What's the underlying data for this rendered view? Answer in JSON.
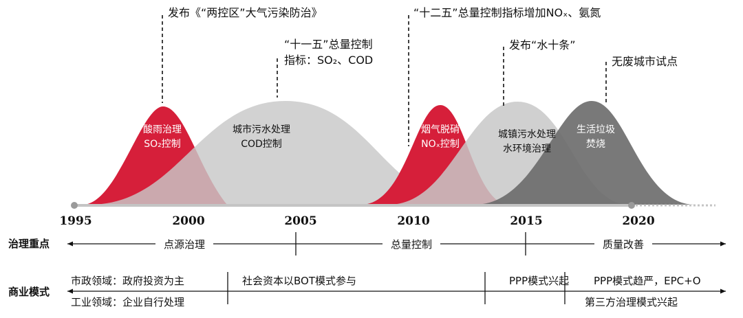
{
  "years": [
    "1995",
    "2000",
    "2005",
    "2010",
    "2015",
    "2020"
  ],
  "colors": {
    "red": "#d61f3a",
    "light_gray": "#c8c8c8",
    "dark_gray": "#6a6a6a",
    "axis": "#c4c4c4",
    "text": "#111111"
  },
  "curves": [
    {
      "id": "acid-rain",
      "label_lines": [
        "酸雨治理",
        "SO₂控制"
      ],
      "color": "red",
      "label_color": "#ffffff"
    },
    {
      "id": "sewage-cod",
      "label_lines": [
        "城市污水处理",
        "COD控制"
      ],
      "color": "light_gray",
      "label_color": "#111111"
    },
    {
      "id": "denitration",
      "label_lines": [
        "烟气脱硝",
        "NOₓ控制"
      ],
      "color": "red",
      "label_color": "#ffffff"
    },
    {
      "id": "water-env",
      "label_lines": [
        "城镇污水处理",
        "水环境治理"
      ],
      "color": "light_gray",
      "label_color": "#111111"
    },
    {
      "id": "incineration",
      "label_lines": [
        "生活垃圾",
        "焚烧"
      ],
      "color": "dark_gray",
      "label_color": "#ffffff"
    }
  ],
  "annotations": [
    {
      "id": "anti-pollution-law",
      "lines": [
        "发布《“两控区”大气污染防治》"
      ]
    },
    {
      "id": "eleventh-five",
      "lines": [
        "“十一五”总量控制",
        "指标：SO₂、COD"
      ]
    },
    {
      "id": "twelfth-five",
      "lines": [
        "“十二五”总量控制指标增加NOₓ、氨氮"
      ]
    },
    {
      "id": "water-ten",
      "lines": [
        "发布“水十条”"
      ]
    },
    {
      "id": "zero-waste-city",
      "lines": [
        "无废城市试点"
      ]
    }
  ],
  "governance": {
    "title": "治理重点",
    "phases": [
      "点源治理",
      "总量控制",
      "质量改善"
    ]
  },
  "business": {
    "title": "商业模式",
    "municipal": "市政领域：政府投资为主",
    "industrial": "工业领域：企业自行处理",
    "bot": "社会资本以BOT模式参与",
    "ppp_rise": "PPP模式兴起",
    "ppp_strict": "PPP模式趋严，EPC+O",
    "third_party": "第三方治理模式兴起"
  }
}
